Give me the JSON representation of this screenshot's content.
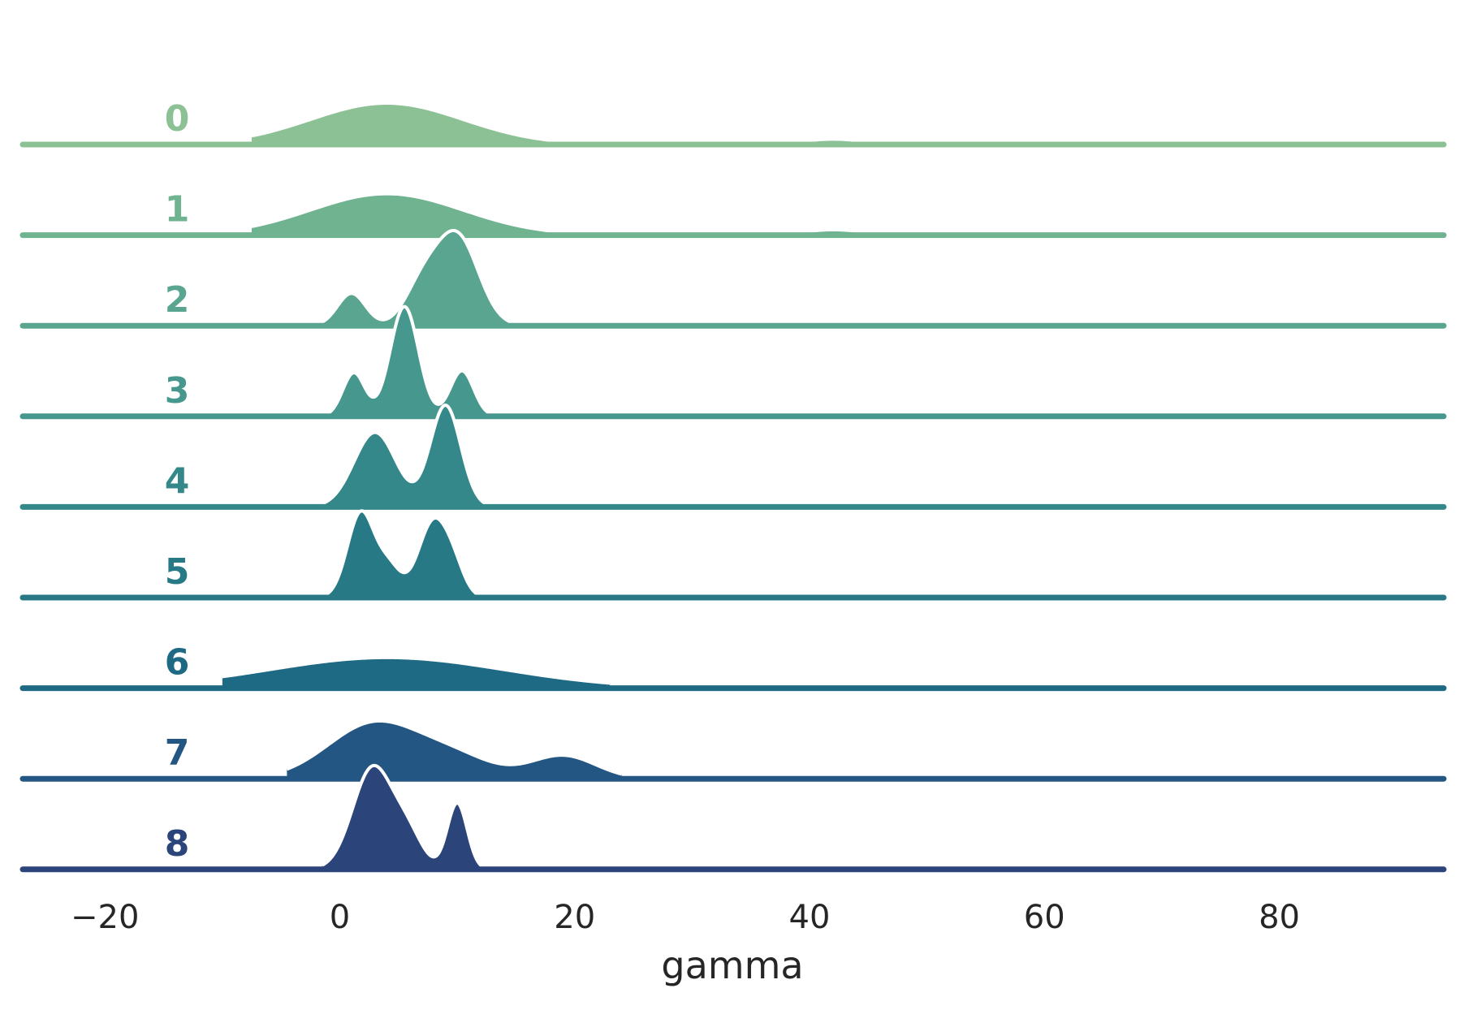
{
  "chart_data": {
    "type": "area",
    "subtype": "ridgeline-kde",
    "xlabel": "gamma",
    "xlim": [
      -27,
      94
    ],
    "xticks": [
      -20,
      0,
      20,
      40,
      60,
      80
    ],
    "xtick_labels": [
      "−20",
      "0",
      "20",
      "40",
      "60",
      "80"
    ],
    "ylabel": "",
    "grid": false,
    "legend": "none",
    "colors": [
      "#8cc095",
      "#70b391",
      "#59a58f",
      "#46978d",
      "#35888a",
      "#277986",
      "#1e6a85",
      "#245683",
      "#2b447a"
    ],
    "rows": [
      {
        "label": "0",
        "support": [
          -7.5,
          47
        ],
        "components": [
          {
            "mu": 4,
            "sigma": 6.5,
            "h": 1.0
          },
          {
            "mu": 42,
            "sigma": 2.6,
            "h": 0.13
          }
        ]
      },
      {
        "label": "1",
        "support": [
          -7.5,
          47
        ],
        "components": [
          {
            "mu": 4,
            "sigma": 6.5,
            "h": 1.0
          },
          {
            "mu": 42,
            "sigma": 2.6,
            "h": 0.13
          }
        ]
      },
      {
        "label": "2",
        "support": [
          -2,
          15.5
        ],
        "components": [
          {
            "mu": 1,
            "sigma": 1.2,
            "h": 0.78
          },
          {
            "mu": 7,
            "sigma": 1.5,
            "h": 0.9
          },
          {
            "mu": 10,
            "sigma": 1.8,
            "h": 2.15
          }
        ]
      },
      {
        "label": "3",
        "support": [
          -1.5,
          13
        ],
        "components": [
          {
            "mu": 1.2,
            "sigma": 0.95,
            "h": 1.05
          },
          {
            "mu": 5.5,
            "sigma": 1.2,
            "h": 2.65
          },
          {
            "mu": 10.4,
            "sigma": 1.0,
            "h": 1.1
          }
        ]
      },
      {
        "label": "4",
        "support": [
          -1.5,
          12.5
        ],
        "components": [
          {
            "mu": 3,
            "sigma": 1.8,
            "h": 1.8
          },
          {
            "mu": 9,
            "sigma": 1.3,
            "h": 2.45
          }
        ]
      },
      {
        "label": "5",
        "support": [
          -1.5,
          12
        ],
        "components": [
          {
            "mu": 1.8,
            "sigma": 1.15,
            "h": 2.05
          },
          {
            "mu": 4.2,
            "sigma": 1.0,
            "h": 0.7
          },
          {
            "mu": 8.0,
            "sigma": 1.3,
            "h": 1.85
          },
          {
            "mu": 9.8,
            "sigma": 0.9,
            "h": 0.45
          }
        ]
      },
      {
        "label": "6",
        "support": [
          -10,
          23
        ],
        "components": [
          {
            "mu": 4,
            "sigma": 10.0,
            "h": 0.74
          }
        ]
      },
      {
        "label": "7",
        "support": [
          -4.5,
          24
        ],
        "components": [
          {
            "mu": 3,
            "sigma": 4.0,
            "h": 1.35
          },
          {
            "mu": 10,
            "sigma": 3.2,
            "h": 0.45
          },
          {
            "mu": 19,
            "sigma": 2.8,
            "h": 0.56
          }
        ]
      },
      {
        "label": "8",
        "support": [
          -1.5,
          13
        ],
        "components": [
          {
            "mu": 2.8,
            "sigma": 1.7,
            "h": 2.45
          },
          {
            "mu": 5.8,
            "sigma": 1.3,
            "h": 0.75
          },
          {
            "mu": 10,
            "sigma": 0.85,
            "h": 1.6
          }
        ]
      }
    ]
  }
}
